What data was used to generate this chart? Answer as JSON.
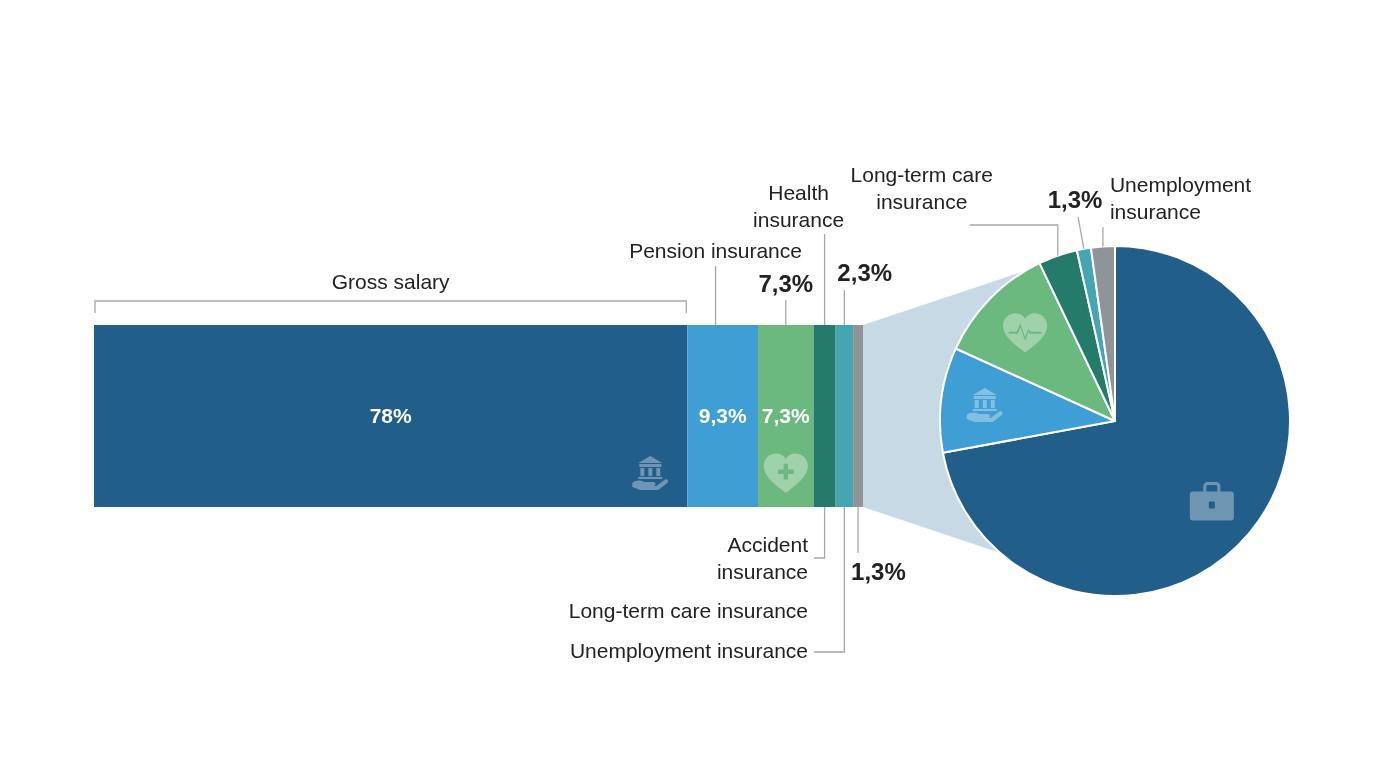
{
  "chart_data": [
    {
      "type": "bar",
      "orientation": "horizontal",
      "stacked": true,
      "categories": [
        null
      ],
      "series": [
        {
          "name": "Gross salary",
          "color": "#215e89",
          "values": [
            78
          ],
          "value_labels": [
            "78%"
          ]
        },
        {
          "name": "Pension insurance",
          "color": "#3f9fd5",
          "values": [
            9.3
          ],
          "value_labels": [
            "9,3%"
          ]
        },
        {
          "color": "#6cb97f",
          "values": [
            7.3
          ],
          "value_labels": [
            "7,3%"
          ]
        },
        {
          "color": "#247b6a",
          "values": [
            2.9
          ]
        },
        {
          "color": "#45a5b1",
          "values": [
            2.3
          ],
          "value_labels": [
            "2,3%"
          ]
        },
        {
          "color": "#8e9497",
          "values": [
            1.3
          ],
          "value_labels": [
            "1,3%"
          ]
        }
      ],
      "annotations": [
        "Health insurance",
        "7,3%",
        "Accident insurance",
        "Long-term care insurance",
        "Unemployment insurance"
      ]
    },
    {
      "type": "pie",
      "categories": [
        null,
        null,
        null,
        "Long-term care insurance",
        null,
        "Unemployment insurance"
      ],
      "values": [
        72.1,
        9.7,
        11.1,
        3.6,
        1.3,
        2.2
      ],
      "colors": [
        "#215e89",
        "#3f9fd5",
        "#6cb97f",
        "#247b6a",
        "#45a5b1",
        "#8e9497"
      ],
      "value_labels": [
        null,
        null,
        null,
        null,
        "1,3%",
        null
      ]
    }
  ]
}
